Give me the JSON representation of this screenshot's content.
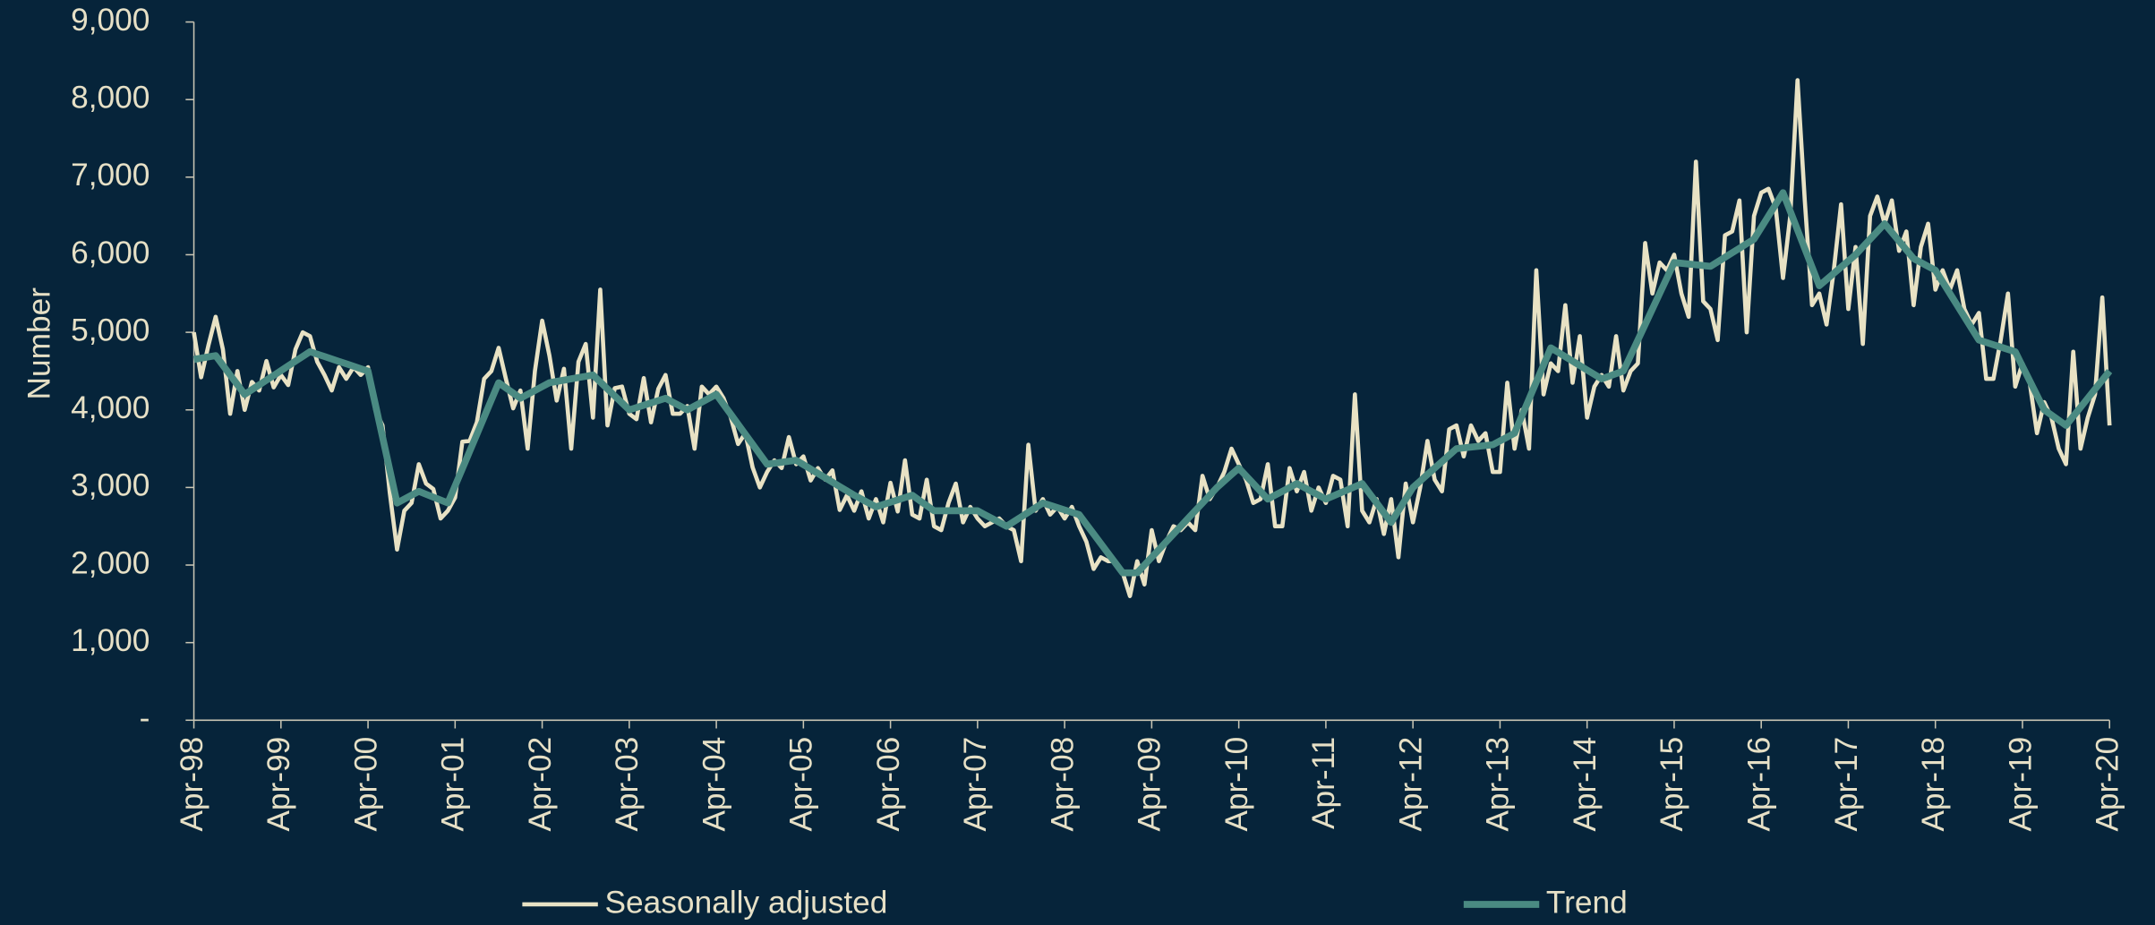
{
  "chart_data": {
    "type": "line",
    "ylabel": "Number",
    "categories": [
      "Apr-98",
      null,
      null,
      null,
      null,
      null,
      null,
      null,
      null,
      null,
      null,
      null,
      "Apr-99",
      null,
      null,
      null,
      null,
      null,
      null,
      null,
      null,
      null,
      null,
      null,
      "Apr-00",
      null,
      null,
      null,
      null,
      null,
      null,
      null,
      null,
      null,
      null,
      null,
      "Apr-01",
      null,
      null,
      null,
      null,
      null,
      null,
      null,
      null,
      null,
      null,
      null,
      "Apr-02",
      null,
      null,
      null,
      null,
      null,
      null,
      null,
      null,
      null,
      null,
      null,
      "Apr-03",
      null,
      null,
      null,
      null,
      null,
      null,
      null,
      null,
      null,
      null,
      null,
      "Apr-04",
      null,
      null,
      null,
      null,
      null,
      null,
      null,
      null,
      null,
      null,
      null,
      "Apr-05",
      null,
      null,
      null,
      null,
      null,
      null,
      null,
      null,
      null,
      null,
      null,
      "Apr-06",
      null,
      null,
      null,
      null,
      null,
      null,
      null,
      null,
      null,
      null,
      null,
      "Apr-07",
      null,
      null,
      null,
      null,
      null,
      null,
      null,
      null,
      null,
      null,
      null,
      "Apr-08",
      null,
      null,
      null,
      null,
      null,
      null,
      null,
      null,
      null,
      null,
      null,
      "Apr-09",
      null,
      null,
      null,
      null,
      null,
      null,
      null,
      null,
      null,
      null,
      null,
      "Apr-10",
      null,
      null,
      null,
      null,
      null,
      null,
      null,
      null,
      null,
      null,
      null,
      "Apr-11",
      null,
      null,
      null,
      null,
      null,
      null,
      null,
      null,
      null,
      null,
      null,
      "Apr-12",
      null,
      null,
      null,
      null,
      null,
      null,
      null,
      null,
      null,
      null,
      null,
      "Apr-13",
      null,
      null,
      null,
      null,
      null,
      null,
      null,
      null,
      null,
      null,
      null,
      "Apr-14",
      null,
      null,
      null,
      null,
      null,
      null,
      null,
      null,
      null,
      null,
      null,
      "Apr-15",
      null,
      null,
      null,
      null,
      null,
      null,
      null,
      null,
      null,
      null,
      null,
      "Apr-16",
      null,
      null,
      null,
      null,
      null,
      null,
      null,
      null,
      null,
      null,
      null,
      "Apr-17",
      null,
      null,
      null,
      null,
      null,
      null,
      null,
      null,
      null,
      null,
      null,
      "Apr-18",
      null,
      null,
      null,
      null,
      null,
      null,
      null,
      null,
      null,
      null,
      null,
      "Apr-19",
      null,
      null,
      null,
      null,
      null,
      null,
      null,
      null,
      null,
      null,
      null,
      "Apr-20"
    ],
    "series": [
      {
        "name": "Seasonally adjusted",
        "color": "#e8e2c4",
        "width": 3,
        "values": [
          5000,
          4420,
          4830,
          5200,
          4780,
          3950,
          4500,
          4000,
          4360,
          4250,
          4630,
          4290,
          4450,
          4320,
          4780,
          5000,
          4950,
          4620,
          4450,
          4250,
          4550,
          4400,
          4550,
          4450,
          4550,
          4000,
          3800,
          2930,
          2200,
          2700,
          2800,
          3300,
          3050,
          2980,
          2600,
          2700,
          2870,
          3590,
          3600,
          3840,
          4400,
          4500,
          4800,
          4400,
          4020,
          4250,
          3500,
          4500,
          5150,
          4700,
          4120,
          4530,
          3500,
          4620,
          4850,
          3900,
          5550,
          3800,
          4280,
          4300,
          3950,
          3880,
          4410,
          3840,
          4270,
          4450,
          3950,
          3950,
          4050,
          3500,
          4300,
          4200,
          4300,
          4150,
          3900,
          3560,
          3700,
          3260,
          3000,
          3200,
          3350,
          3250,
          3650,
          3300,
          3400,
          3090,
          3250,
          3100,
          3220,
          2710,
          2900,
          2700,
          2950,
          2600,
          2850,
          2550,
          3060,
          2690,
          3350,
          2650,
          2600,
          3100,
          2500,
          2450,
          2800,
          3050,
          2550,
          2750,
          2600,
          2500,
          2550,
          2600,
          2500,
          2450,
          2050,
          3550,
          2700,
          2850,
          2650,
          2750,
          2600,
          2750,
          2500,
          2300,
          1950,
          2100,
          2050,
          2050,
          1900,
          1600,
          2050,
          1750,
          2450,
          2050,
          2300,
          2500,
          2450,
          2550,
          2450,
          3150,
          2850,
          3000,
          3200,
          3500,
          3300,
          3100,
          2800,
          2850,
          3300,
          2500,
          2500,
          3250,
          2950,
          3200,
          2700,
          3000,
          2800,
          3150,
          3100,
          2500,
          4200,
          2700,
          2550,
          2850,
          2400,
          2850,
          2100,
          3050,
          2550,
          3000,
          3600,
          3100,
          2950,
          3750,
          3800,
          3400,
          3800,
          3600,
          3700,
          3200,
          3200,
          4350,
          3500,
          4000,
          3500,
          5800,
          4200,
          4600,
          4500,
          5350,
          4350,
          4950,
          3900,
          4300,
          4450,
          4300,
          4950,
          4250,
          4500,
          4600,
          6150,
          5500,
          5900,
          5800,
          6000,
          5500,
          5200,
          7200,
          5400,
          5300,
          4900,
          6250,
          6300,
          6700,
          5000,
          6500,
          6800,
          6850,
          6600,
          5700,
          6500,
          8250,
          6700,
          5350,
          5500,
          5100,
          5800,
          6650,
          5300,
          6100,
          4850,
          6500,
          6750,
          6400,
          6700,
          6050,
          6300,
          5350,
          6100,
          6400,
          5550,
          5800,
          5550,
          5800,
          5300,
          5100,
          5250,
          4400,
          4400,
          4900,
          5500,
          4300,
          4600,
          4350,
          3700,
          4100,
          3900,
          3500,
          3300,
          4750,
          3500,
          3900,
          4200,
          5450,
          3800
        ]
      },
      {
        "name": "Trend",
        "color": "#4a8a82",
        "width": 5,
        "values": [
          4650,
          4667,
          4683,
          4700,
          4575,
          4450,
          4325,
          4200,
          4261,
          4322,
          4383,
          4444,
          4506,
          4567,
          4628,
          4689,
          4750,
          4719,
          4688,
          4656,
          4625,
          4594,
          4562,
          4531,
          4500,
          4075,
          3650,
          3225,
          2800,
          2850,
          2900,
          2950,
          2912,
          2875,
          2838,
          2800,
          3021,
          3243,
          3464,
          3686,
          3907,
          4129,
          4350,
          4283,
          4217,
          4150,
          4200,
          4250,
          4300,
          4350,
          4367,
          4383,
          4400,
          4417,
          4433,
          4450,
          4360,
          4270,
          4180,
          4090,
          4000,
          4030,
          4060,
          4090,
          4120,
          4150,
          4100,
          4050,
          4000,
          4050,
          4100,
          4150,
          4200,
          4071,
          3943,
          3814,
          3686,
          3557,
          3429,
          3300,
          3312,
          3325,
          3338,
          3350,
          3294,
          3238,
          3181,
          3125,
          3069,
          3012,
          2956,
          2900,
          2850,
          2800,
          2750,
          2780,
          2810,
          2840,
          2870,
          2900,
          2833,
          2767,
          2700,
          2700,
          2700,
          2700,
          2700,
          2700,
          2700,
          2650,
          2600,
          2550,
          2500,
          2560,
          2620,
          2680,
          2740,
          2800,
          2770,
          2740,
          2710,
          2680,
          2650,
          2525,
          2400,
          2275,
          2150,
          2025,
          1900,
          1900,
          1900,
          2000,
          2100,
          2200,
          2300,
          2400,
          2500,
          2600,
          2700,
          2800,
          2900,
          3000,
          3083,
          3167,
          3250,
          3150,
          3050,
          2950,
          2850,
          2900,
          2950,
          3000,
          3050,
          3000,
          2950,
          2900,
          2850,
          2890,
          2930,
          2970,
          3010,
          3050,
          2925,
          2800,
          2675,
          2550,
          2700,
          2850,
          3000,
          3083,
          3167,
          3250,
          3333,
          3417,
          3500,
          3510,
          3520,
          3530,
          3540,
          3550,
          3600,
          3650,
          3700,
          3920,
          4140,
          4360,
          4580,
          4800,
          4743,
          4686,
          4629,
          4571,
          4514,
          4457,
          4400,
          4433,
          4467,
          4500,
          4700,
          4900,
          5100,
          5300,
          5500,
          5700,
          5900,
          5890,
          5880,
          5870,
          5860,
          5850,
          5908,
          5967,
          6025,
          6083,
          6142,
          6200,
          6350,
          6500,
          6650,
          6800,
          6560,
          6320,
          6080,
          5840,
          5600,
          5680,
          5760,
          5840,
          5920,
          6000,
          6100,
          6200,
          6300,
          6400,
          6288,
          6175,
          6062,
          5950,
          5900,
          5850,
          5800,
          5650,
          5500,
          5350,
          5200,
          5050,
          4900,
          4870,
          4840,
          4810,
          4780,
          4750,
          4562,
          4375,
          4188,
          4000,
          3933,
          3867,
          3800,
          3917,
          4033,
          4150,
          4267,
          4383,
          4500
        ]
      }
    ],
    "ylim": [
      0,
      9000
    ],
    "yticks": [
      {
        "value": 0,
        "label": "-"
      },
      {
        "value": 1000,
        "label": "1,000"
      },
      {
        "value": 2000,
        "label": "2,000"
      },
      {
        "value": 3000,
        "label": "3,000"
      },
      {
        "value": 4000,
        "label": "4,000"
      },
      {
        "value": 5000,
        "label": "5,000"
      },
      {
        "value": 6000,
        "label": "6,000"
      },
      {
        "value": 7000,
        "label": "7,000"
      },
      {
        "value": 8000,
        "label": "8,000"
      },
      {
        "value": 9000,
        "label": "9,000"
      }
    ],
    "grid": false,
    "legend": "bottom"
  }
}
